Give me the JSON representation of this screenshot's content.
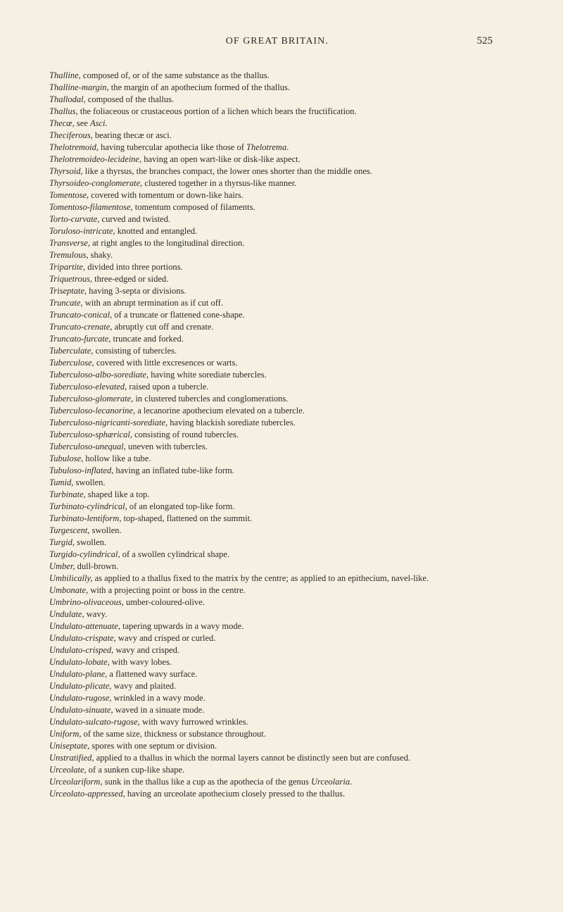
{
  "header": {
    "title": "OF GREAT BRITAIN.",
    "page_number": "525"
  },
  "entries": [
    {
      "term": "Thalline,",
      "def": " composed of, or of the same substance as the thallus."
    },
    {
      "term": "Thalline-margin,",
      "def": " the margin of an apothecium formed of the thallus."
    },
    {
      "term": "Thallodal,",
      "def": " composed of the thallus."
    },
    {
      "term": "Thallus,",
      "def": " the foliaceous or crustaceous portion of a lichen which bears the fructification."
    },
    {
      "term": "Thecæ,",
      "def": " see Asci.",
      "def_italic_part": "Asci"
    },
    {
      "term": "Theciferous,",
      "def": " bearing thecæ or asci."
    },
    {
      "term": "Thelotremoid,",
      "def": " having tubercular apothecia like those of Thelotrema.",
      "def_italic_part": "Thelotrema"
    },
    {
      "term": "Thelotremoideo-lecideine,",
      "def": " having an open wart-like or disk-like aspect."
    },
    {
      "term": "Thyrsoid,",
      "def": " like a thyrsus, the branches compact, the lower ones shorter than the middle ones."
    },
    {
      "term": "Thyrsoideo-conglomerate,",
      "def": " clustered together in a thyrsus-like manner."
    },
    {
      "term": "Tomentose,",
      "def": " covered with tomentum or down-like hairs."
    },
    {
      "term": "Tomentoso-filamentose,",
      "def": " tomentum composed of filaments."
    },
    {
      "term": "Torto-curvate,",
      "def": " curved and twisted."
    },
    {
      "term": "Toruloso-intricate,",
      "def": " knotted and entangled."
    },
    {
      "term": "Transverse,",
      "def": " at right angles to the longitudinal direction."
    },
    {
      "term": "Tremulous,",
      "def": " shaky."
    },
    {
      "term": "Tripartite,",
      "def": " divided into three portions."
    },
    {
      "term": "Triquetrous,",
      "def": " three-edged or sided."
    },
    {
      "term": "Triseptate,",
      "def": " having 3-septa or divisions."
    },
    {
      "term": "Truncate,",
      "def": " with an abrupt termination as if cut off."
    },
    {
      "term": "Truncato-conical,",
      "def": " of a truncate or flattened cone-shape."
    },
    {
      "term": "Truncato-crenate,",
      "def": " abruptly cut off and crenate."
    },
    {
      "term": "Truncato-furcate,",
      "def": " truncate and forked."
    },
    {
      "term": "Tuberculate,",
      "def": " consisting of tubercles."
    },
    {
      "term": "Tuberculose,",
      "def": " covered with little excresences or warts."
    },
    {
      "term": "Tuberculoso-albo-sorediate,",
      "def": " having white sorediate tubercles."
    },
    {
      "term": "Tuberculoso-elevated,",
      "def": " raised upon a tubercle."
    },
    {
      "term": "Tuberculoso-glomerate,",
      "def": " in clustered tubercles and conglomerations."
    },
    {
      "term": "Tuberculoso-lecanorine,",
      "def": " a lecanorine apothecium elevated on a tubercle."
    },
    {
      "term": "Tuberculoso-nigricanti-sorediate,",
      "def": " having blackish sorediate tubercles."
    },
    {
      "term": "Tuberculoso-sphærical,",
      "def": " consisting of round tubercles."
    },
    {
      "term": "Tuberculoso-unequal,",
      "def": " uneven with tubercles."
    },
    {
      "term": "Tubulose,",
      "def": " hollow like a tube."
    },
    {
      "term": "Tubuloso-inflated,",
      "def": " having an inflated tube-like form."
    },
    {
      "term": "Tumid,",
      "def": " swollen."
    },
    {
      "term": "Turbinate,",
      "def": " shaped like a top."
    },
    {
      "term": "Turbinato-cylindrical,",
      "def": " of an elongated top-like form."
    },
    {
      "term": "Turbinato-lentiform,",
      "def": " top-shaped, flattened on the summit."
    },
    {
      "term": "Turgescent,",
      "def": " swollen."
    },
    {
      "term": "Turgid,",
      "def": " swollen."
    },
    {
      "term": "Turgido-cylindrical,",
      "def": " of a swollen cylindrical shape."
    },
    {
      "term": "Umber,",
      "def": " dull-brown."
    },
    {
      "term": "Umbilically,",
      "def": " as applied to a thallus fixed to the matrix by the centre; as applied to an epithecium, navel-like."
    },
    {
      "term": "Umbonate,",
      "def": " with a projecting point or boss in the centre."
    },
    {
      "term": "Umbrino-olivaceous,",
      "def": " umber-coloured-olive."
    },
    {
      "term": "Undulate,",
      "def": " wavy."
    },
    {
      "term": "Undulato-attenuate,",
      "def": " tapering upwards in a wavy mode."
    },
    {
      "term": "Undulato-crispate,",
      "def": " wavy and crisped or curled."
    },
    {
      "term": "Undulato-crisped,",
      "def": " wavy and crisped."
    },
    {
      "term": "Undulato-lobate,",
      "def": " with wavy lobes."
    },
    {
      "term": "Undulato-plane,",
      "def": " a flattened wavy surface."
    },
    {
      "term": "Undulato-plicate,",
      "def": " wavy and plaited."
    },
    {
      "term": "Undulato-rugose,",
      "def": " wrinkled in a wavy mode."
    },
    {
      "term": "Undulato-sinuate,",
      "def": " waved in a sinuate mode."
    },
    {
      "term": "Undulato-sulcato-rugose,",
      "def": " with wavy furrowed wrinkles."
    },
    {
      "term": "Uniform,",
      "def": " of the same size, thickness or substance throughout."
    },
    {
      "term": "Uniseptate,",
      "def": " spores with one septum or division."
    },
    {
      "term": "Unstratified,",
      "def": " applied to a thallus in which the normal layers cannot be distinctly seen but are confused."
    },
    {
      "term": "Urceolate,",
      "def": " of a sunken cup-like shape."
    },
    {
      "term": "Urceolariform,",
      "def": " sunk in the thallus like a cup as the apothecia of the genus Urceolaria.",
      "def_italic_part": "Urceolaria"
    },
    {
      "term": "Urceolato-appressed,",
      "def": " having an urceolate apothecium closely pressed to the thallus."
    }
  ]
}
